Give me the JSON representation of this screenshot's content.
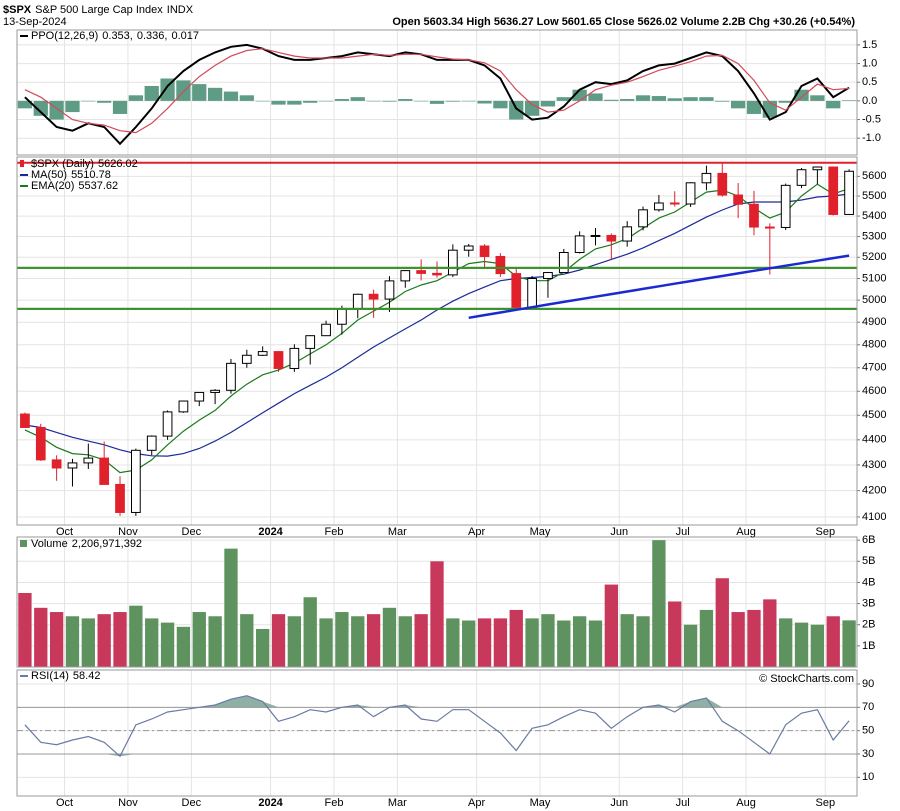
{
  "header": {
    "symbol": "$SPX",
    "name": "S&P 500 Large Cap Index",
    "exchange": "INDX",
    "date": "13-Sep-2024",
    "quote": "Open 5603.34 High 5636.27 Low 5601.65 Close 5626.02 Volume 2.2B Chg +30.26 (+0.54%)",
    "credit": "© StockCharts.com"
  },
  "chart_data": [
    {
      "type": "line",
      "name": "PPO(12,26,9)",
      "separator": ",",
      "series": [
        {
          "color": "#000000",
          "values": [
            0.1,
            -0.3,
            -0.7,
            -0.8,
            -0.6,
            -0.7,
            -1.15,
            -0.7,
            -0.2,
            0.4,
            0.8,
            1.1,
            1.3,
            1.45,
            1.5,
            1.4,
            1.2,
            1.1,
            1.1,
            1.15,
            1.2,
            1.3,
            1.25,
            1.2,
            1.3,
            1.25,
            1.1,
            1.1,
            1.1,
            0.95,
            0.6,
            -0.2,
            -0.5,
            -0.45,
            -0.15,
            0.3,
            0.5,
            0.45,
            0.55,
            0.8,
            0.95,
            1.0,
            1.15,
            1.3,
            1.2,
            0.8,
            0.2,
            -0.5,
            -0.3,
            0.4,
            0.6,
            0.1,
            0.353
          ]
        },
        {
          "color": "#d04a5a",
          "values": [
            0.3,
            0.1,
            -0.2,
            -0.5,
            -0.6,
            -0.65,
            -0.8,
            -0.85,
            -0.6,
            -0.2,
            0.25,
            0.65,
            0.95,
            1.2,
            1.35,
            1.4,
            1.3,
            1.2,
            1.15,
            1.15,
            1.15,
            1.2,
            1.25,
            1.22,
            1.25,
            1.25,
            1.18,
            1.12,
            1.1,
            1.02,
            0.8,
            0.3,
            -0.1,
            -0.3,
            -0.25,
            0.0,
            0.3,
            0.42,
            0.5,
            0.65,
            0.82,
            0.93,
            1.05,
            1.2,
            1.22,
            1.0,
            0.55,
            -0.05,
            -0.25,
            0.1,
            0.45,
            0.3,
            0.336
          ]
        },
        {
          "color": "#5f9c86",
          "style": "histogram",
          "values": [
            -0.2,
            -0.4,
            -0.5,
            -0.3,
            0.0,
            -0.05,
            -0.35,
            0.15,
            0.4,
            0.6,
            0.55,
            0.45,
            0.35,
            0.25,
            0.15,
            0.0,
            -0.1,
            -0.1,
            -0.05,
            0.0,
            0.05,
            0.1,
            0.0,
            -0.02,
            0.05,
            0.0,
            -0.08,
            -0.02,
            0.0,
            -0.07,
            -0.2,
            -0.5,
            -0.4,
            -0.15,
            0.1,
            0.3,
            0.2,
            0.03,
            0.05,
            0.15,
            0.13,
            0.07,
            0.1,
            0.1,
            -0.02,
            -0.2,
            -0.35,
            -0.45,
            -0.05,
            0.3,
            0.15,
            -0.2,
            0.017
          ]
        }
      ],
      "ylim": [
        -1.45,
        1.9
      ],
      "yticks": [
        {
          "value": -1.0,
          "label": "-1.0"
        },
        {
          "value": -0.5,
          "label": "-0.5"
        },
        {
          "value": 0.0,
          "label": "0.0"
        },
        {
          "value": 0.5,
          "label": "0.5"
        },
        {
          "value": 1.0,
          "label": "1.0"
        },
        {
          "value": 1.5,
          "label": "1.5"
        }
      ],
      "grid": true
    },
    {
      "type": "candlestick",
      "name": "$SPX (Daily)",
      "log": true,
      "grid": true,
      "up_color": "#000000",
      "down_color": "#e0202a",
      "categories": [
        null,
        null,
        null,
        "Oct",
        null,
        null,
        null,
        "Nov",
        null,
        null,
        null,
        "Dec",
        null,
        null,
        null,
        null,
        "2024",
        null,
        null,
        null,
        "Feb",
        null,
        null,
        null,
        "Mar",
        null,
        null,
        null,
        null,
        "Apr",
        null,
        null,
        null,
        "May",
        null,
        null,
        null,
        null,
        "Jun",
        null,
        null,
        null,
        "Jul",
        null,
        null,
        null,
        "Aug",
        null,
        null,
        null,
        null,
        "Sep",
        null
      ],
      "open": [
        4505,
        4450,
        4320,
        4288,
        4308,
        4327,
        4224,
        4117,
        4358,
        4415,
        4514,
        4559,
        4595,
        4604,
        4719,
        4754,
        4770,
        4697,
        4784,
        4840,
        4891,
        4959,
        5027,
        5005,
        5089,
        5137,
        5124,
        5117,
        5234,
        5254,
        5204,
        5123,
        4967,
        5100,
        5128,
        5223,
        5303,
        5305,
        5278,
        5347,
        5431,
        5465,
        5460,
        5567,
        5615,
        5505,
        5459,
        5346,
        5344,
        5554,
        5634,
        5648,
        5408
      ],
      "high": [
        4511,
        4465,
        4338,
        4324,
        4385,
        4393,
        4256,
        4365,
        4418,
        4520,
        4560,
        4595,
        4609,
        4738,
        4778,
        4793,
        4773,
        4802,
        4842,
        4907,
        4975,
        5030,
        5048,
        5111,
        5140,
        5190,
        5180,
        5262,
        5264,
        5263,
        5220,
        5150,
        5112,
        5131,
        5240,
        5325,
        5341,
        5315,
        5375,
        5447,
        5505,
        5524,
        5570,
        5655,
        5669,
        5566,
        5526,
        5364,
        5563,
        5643,
        5651,
        5651,
        5636
      ],
      "low": [
        4448,
        4316,
        4238,
        4216,
        4284,
        4223,
        4104,
        4104,
        4339,
        4400,
        4510,
        4538,
        4546,
        4590,
        4700,
        4751,
        4682,
        4682,
        4714,
        4840,
        4845,
        4918,
        4920,
        4946,
        5057,
        5091,
        5104,
        5107,
        5203,
        5146,
        5107,
        4953,
        4963,
        5011,
        5127,
        5218,
        5257,
        5191,
        5251,
        5330,
        5422,
        5447,
        5445,
        5529,
        5497,
        5390,
        5306,
        5119,
        5332,
        5540,
        5561,
        5403,
        5406
      ],
      "close": [
        4450,
        4320,
        4288,
        4308,
        4327,
        4224,
        4117,
        4358,
        4415,
        4514,
        4559,
        4595,
        4604,
        4719,
        4754,
        4770,
        4697,
        4784,
        4840,
        4891,
        4959,
        5027,
        5005,
        5089,
        5137,
        5124,
        5117,
        5234,
        5254,
        5204,
        5123,
        4967,
        5100,
        5128,
        5223,
        5303,
        5305,
        5278,
        5347,
        5431,
        5465,
        5460,
        5567,
        5615,
        5505,
        5459,
        5346,
        5344,
        5554,
        5634,
        5648,
        5408,
        5626.02
      ],
      "series": [
        {
          "name": "MA(50)",
          "color": "#1c2a96",
          "values": [
            4460,
            4450,
            4430,
            4410,
            4395,
            4380,
            4360,
            4345,
            4336,
            4335,
            4345,
            4365,
            4395,
            4430,
            4470,
            4510,
            4550,
            4590,
            4625,
            4660,
            4700,
            4745,
            4790,
            4830,
            4870,
            4910,
            4955,
            4995,
            5030,
            5060,
            5090,
            5100,
            5105,
            5110,
            5120,
            5140,
            5165,
            5190,
            5215,
            5245,
            5280,
            5315,
            5355,
            5395,
            5430,
            5460,
            5470,
            5470,
            5470,
            5480,
            5495,
            5500,
            5510.78
          ]
        },
        {
          "name": "EMA(20)",
          "color": "#1a7a1a",
          "values": [
            4440,
            4410,
            4370,
            4345,
            4340,
            4320,
            4270,
            4280,
            4320,
            4380,
            4435,
            4480,
            4520,
            4580,
            4630,
            4670,
            4690,
            4720,
            4760,
            4800,
            4850,
            4910,
            4950,
            4990,
            5040,
            5070,
            5090,
            5130,
            5170,
            5180,
            5170,
            5110,
            5090,
            5090,
            5130,
            5190,
            5240,
            5260,
            5290,
            5340,
            5390,
            5420,
            5470,
            5520,
            5530,
            5500,
            5440,
            5390,
            5420,
            5500,
            5560,
            5510,
            5537.62
          ]
        }
      ],
      "trendline": {
        "color": "#1a2ad0",
        "values": [
          null,
          null,
          null,
          null,
          null,
          null,
          null,
          null,
          null,
          null,
          null,
          null,
          null,
          null,
          null,
          null,
          null,
          null,
          null,
          null,
          null,
          null,
          null,
          null,
          null,
          null,
          null,
          null,
          4920,
          4932,
          4944,
          4956,
          4968,
          4980,
          4992,
          5004,
          5016,
          5028,
          5040,
          5052,
          5064,
          5076,
          5088,
          5100,
          5112,
          5124,
          5136,
          5148,
          5160,
          5172,
          5184,
          5196,
          5208
        ]
      },
      "levels": [
        {
          "value": 5670,
          "color": "#e0202a"
        },
        {
          "value": 5150,
          "color": "#e0202a"
        },
        {
          "value": 5150,
          "color": "#2a9a2a"
        },
        {
          "value": 4960,
          "color": "#e0202a"
        },
        {
          "value": 4960,
          "color": "#2a9a2a"
        }
      ],
      "ylim": [
        4070,
        5700
      ],
      "yticks": [
        4100,
        4200,
        4300,
        4400,
        4500,
        4600,
        4700,
        4800,
        4900,
        5000,
        5100,
        5200,
        5300,
        5400,
        5500,
        5600
      ]
    },
    {
      "type": "bar",
      "name": "Volume",
      "grid": true,
      "up_color": "#5e925e",
      "down_color": "#c8385a",
      "values": [
        3500000000,
        2800000000,
        2600000000,
        2400000000,
        2300000000,
        2500000000,
        2600000000,
        2900000000,
        2300000000,
        2100000000,
        1900000000,
        2600000000,
        2400000000,
        5600000000,
        2500000000,
        1800000000,
        2500000000,
        2400000000,
        3300000000,
        2300000000,
        2600000000,
        2400000000,
        2500000000,
        2800000000,
        2400000000,
        2500000000,
        5000000000,
        2300000000,
        2200000000,
        2300000000,
        2300000000,
        2700000000,
        2300000000,
        2500000000,
        2200000000,
        2400000000,
        2200000000,
        3900000000,
        2500000000,
        2400000000,
        6000000000,
        3100000000,
        2000000000,
        2700000000,
        4200000000,
        2600000000,
        2700000000,
        3200000000,
        2300000000,
        2100000000,
        2000000000,
        2400000000,
        2206971392
      ],
      "value_labels": [
        null,
        null,
        null,
        null,
        null,
        null,
        null,
        null,
        null,
        null,
        null,
        null,
        null,
        null,
        null,
        null,
        null,
        null,
        null,
        null,
        null,
        null,
        null,
        null,
        null,
        null,
        null,
        null,
        null,
        null,
        null,
        null,
        null,
        null,
        null,
        null,
        null,
        null,
        null,
        null,
        null,
        null,
        null,
        null,
        null,
        null,
        null,
        null,
        null,
        null,
        null,
        null,
        "2,206,971,392"
      ],
      "ylim": [
        0,
        6150000000
      ],
      "yticks": [
        {
          "value": 1000000000,
          "label": "1B"
        },
        {
          "value": 2000000000,
          "label": "2B"
        },
        {
          "value": 3000000000,
          "label": "3B"
        },
        {
          "value": 4000000000,
          "label": "4B"
        },
        {
          "value": 5000000000,
          "label": "5B"
        },
        {
          "value": 6000000000,
          "label": "6B"
        }
      ]
    },
    {
      "type": "line",
      "name": "RSI(14)",
      "grid": true,
      "color": "#6a7aa6",
      "fill_color": "#8fb0a4",
      "values": [
        55,
        40,
        38,
        42,
        45,
        40,
        28,
        55,
        60,
        66,
        68,
        70,
        72,
        77,
        80,
        75,
        58,
        62,
        68,
        66,
        70,
        72,
        62,
        70,
        72,
        60,
        58,
        68,
        68,
        58,
        48,
        33,
        52,
        55,
        62,
        68,
        65,
        52,
        62,
        70,
        72,
        66,
        75,
        78,
        58,
        50,
        40,
        30,
        55,
        65,
        68,
        42,
        58.42
      ],
      "levels": [
        70,
        50,
        30
      ],
      "ylim": [
        -6,
        102
      ],
      "yticks": [
        10,
        30,
        50,
        70,
        90
      ]
    }
  ]
}
